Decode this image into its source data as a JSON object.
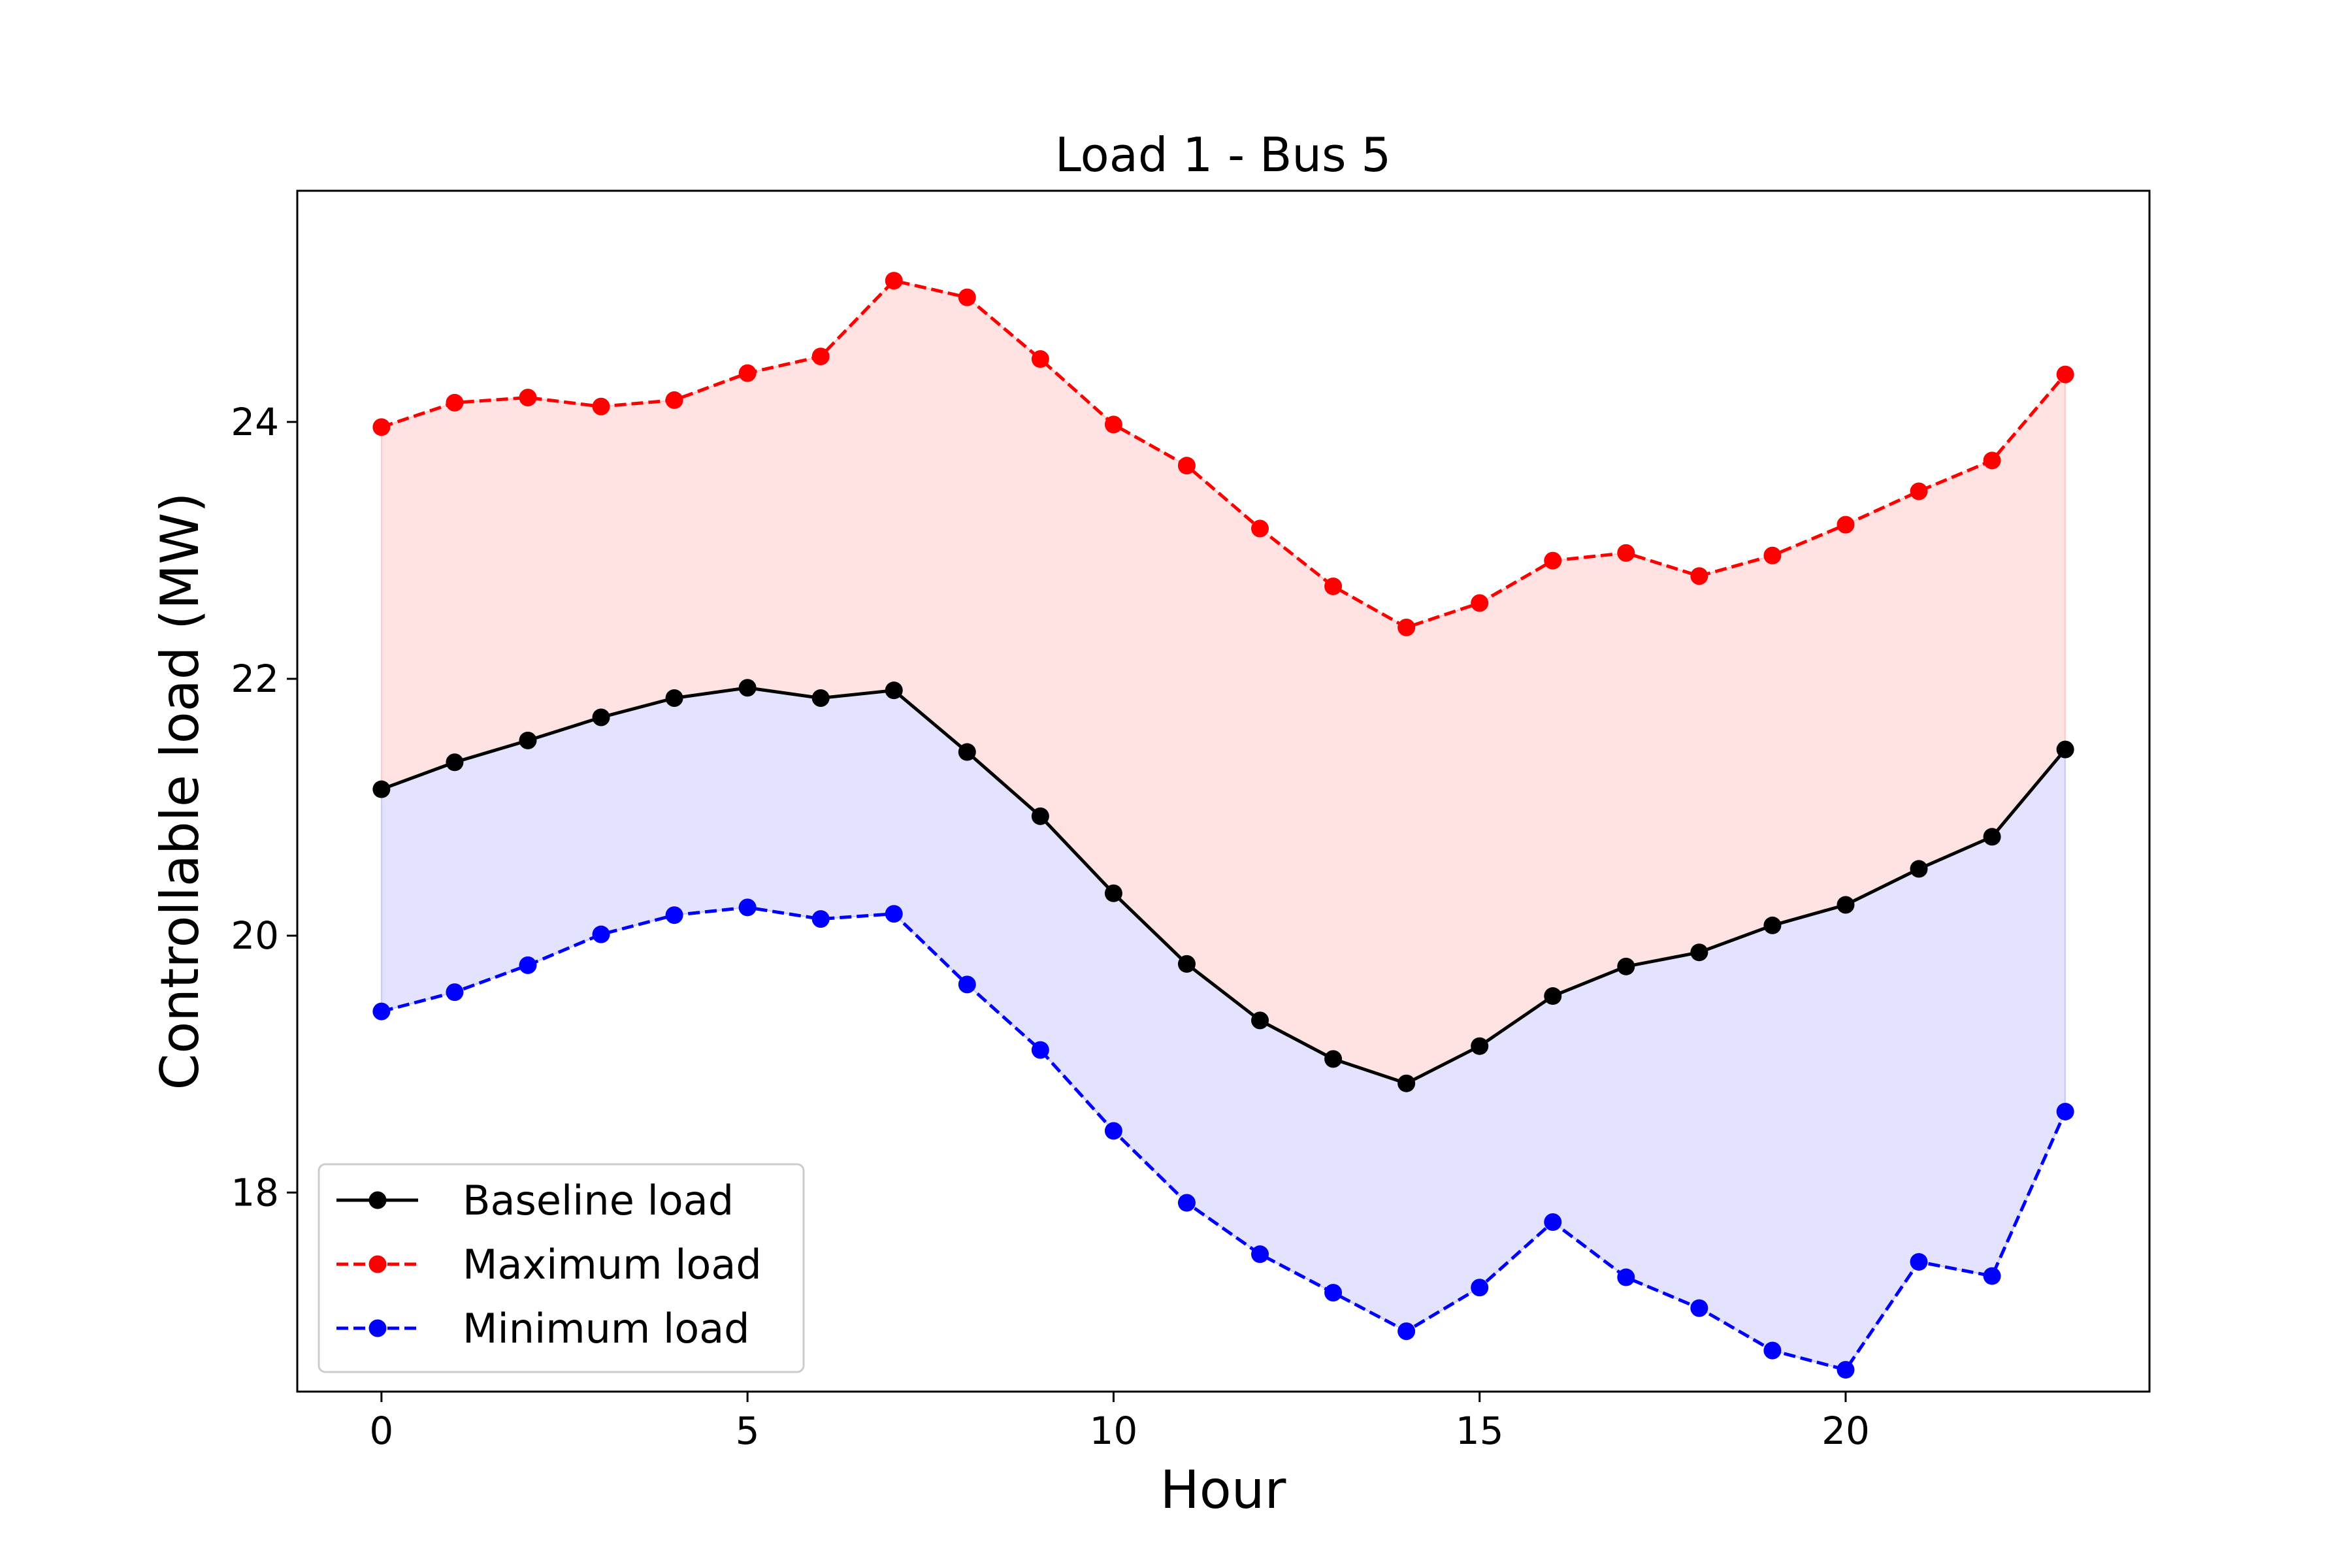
{
  "chart_data": {
    "type": "line",
    "title": "Load 1 - Bus 5",
    "xlabel": "Hour",
    "ylabel": "Controllable load (MW)",
    "xlim": [
      -1.15,
      24.15
    ],
    "ylim": [
      16.45,
      25.8
    ],
    "xticks": [
      0,
      5,
      10,
      15,
      20
    ],
    "yticks": [
      18,
      20,
      22,
      24
    ],
    "grid": false,
    "legend_position": "lower-left",
    "x": [
      0,
      1,
      2,
      3,
      4,
      5,
      6,
      7,
      8,
      9,
      10,
      11,
      12,
      13,
      14,
      15,
      16,
      17,
      18,
      19,
      20,
      21,
      22,
      23
    ],
    "series": [
      {
        "name": "Baseline load",
        "color": "#000000",
        "linestyle": "solid",
        "marker": "circle",
        "values": [
          21.14,
          21.35,
          21.52,
          21.7,
          21.85,
          21.93,
          21.85,
          21.91,
          21.43,
          20.93,
          20.33,
          19.78,
          19.34,
          19.04,
          18.85,
          19.14,
          19.53,
          19.76,
          19.87,
          20.08,
          20.24,
          20.52,
          20.77,
          21.45
        ]
      },
      {
        "name": "Maximum load",
        "color": "#ff0000",
        "linestyle": "dashed",
        "marker": "circle",
        "values": [
          23.96,
          24.15,
          24.19,
          24.12,
          24.17,
          24.38,
          24.51,
          25.1,
          24.97,
          24.49,
          23.98,
          23.66,
          23.17,
          22.72,
          22.4,
          22.59,
          22.92,
          22.98,
          22.8,
          22.96,
          23.2,
          23.46,
          23.7,
          24.37
        ]
      },
      {
        "name": "Minimum load",
        "color": "#0000ff",
        "linestyle": "dashed",
        "marker": "circle",
        "values": [
          19.41,
          19.56,
          19.77,
          20.01,
          20.16,
          20.22,
          20.13,
          20.17,
          19.62,
          19.11,
          18.48,
          17.92,
          17.52,
          17.22,
          16.92,
          17.26,
          17.77,
          17.34,
          17.1,
          16.77,
          16.62,
          17.46,
          17.35,
          18.63
        ]
      }
    ],
    "fills": [
      {
        "between": [
          "Baseline load",
          "Maximum load"
        ],
        "color": "#ff0000",
        "opacity": 0.11
      },
      {
        "between": [
          "Minimum load",
          "Baseline load"
        ],
        "color": "#0000ff",
        "opacity": 0.11
      }
    ]
  }
}
